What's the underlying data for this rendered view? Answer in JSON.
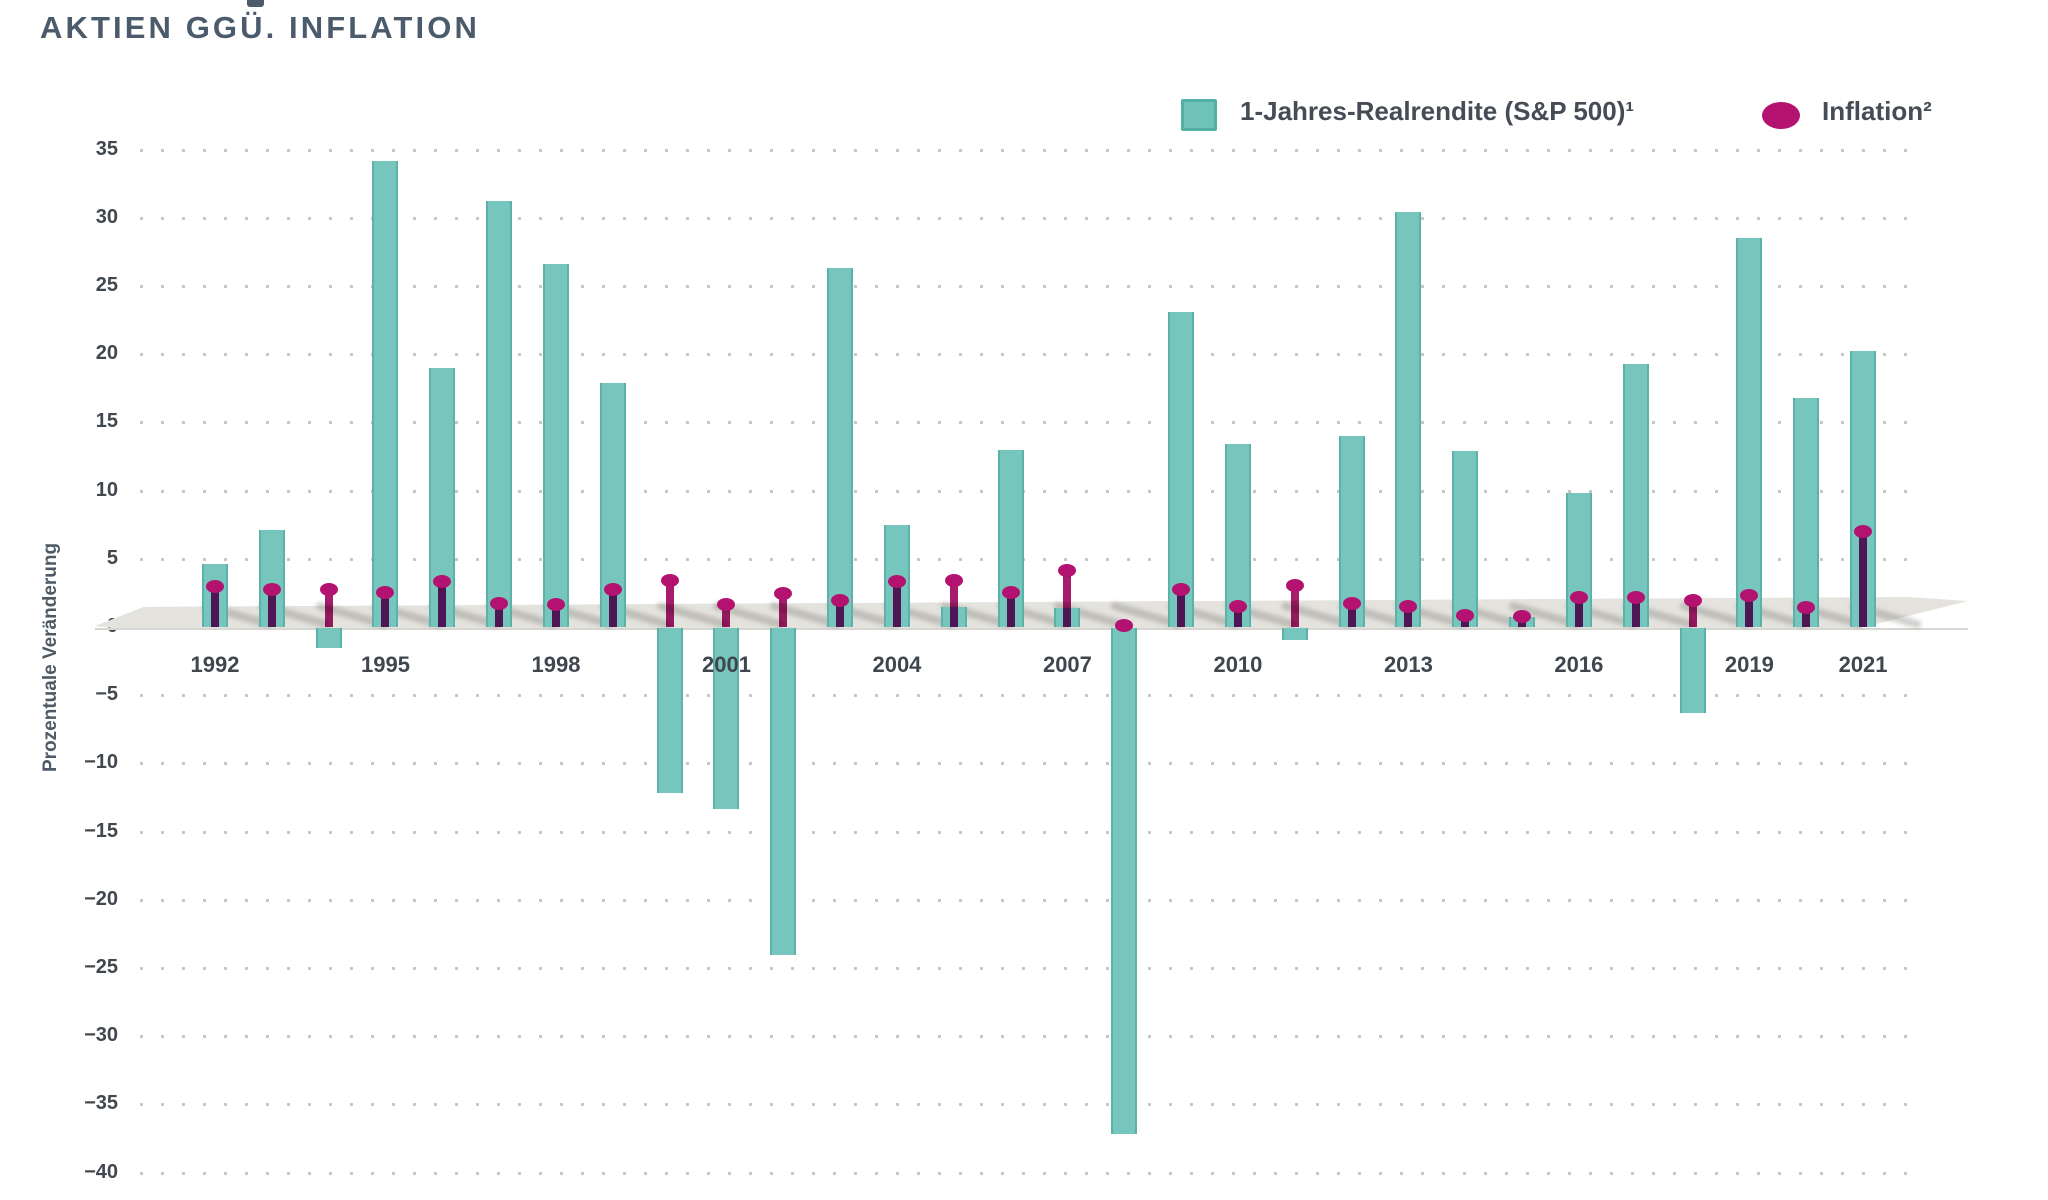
{
  "header": {
    "title": "AKTIEN GGÜ. INFLATION"
  },
  "colors": {
    "title_text": "#4b5b6b",
    "bar_teal": "#76c6bd",
    "bar_teal_edge": "#5cb2a8",
    "inflation_magenta": "#b31270",
    "inflation_stem": "#a81c6e",
    "grid_dot": "#c7c7c7",
    "floor_gray": "#e5e3de",
    "tick_text": "#41474e"
  },
  "legend": {
    "items": [
      {
        "shape": "square",
        "color": "#6ec2b8",
        "label": "1-Jahres-Realrendite (S&P 500)¹"
      },
      {
        "shape": "ellipse",
        "color": "#b31270",
        "label": "Inflation²"
      }
    ]
  },
  "chart_data": {
    "type": "bar",
    "title": "AKTIEN GGÜ. INFLATION",
    "xlabel": "",
    "ylabel": "Prozentuale Veränderung",
    "ylim": [
      -40,
      35
    ],
    "ytick_step": 5,
    "grid": "dotted-horizontal",
    "legend_position": "top-right",
    "categories": [
      "1992",
      "1993",
      "1994",
      "1995",
      "1996",
      "1997",
      "1998",
      "1999",
      "2000",
      "2001",
      "2002",
      "2003",
      "2004",
      "2005",
      "2006",
      "2007",
      "2008",
      "2009",
      "2010",
      "2011",
      "2012",
      "2013",
      "2014",
      "2015",
      "2016",
      "2017",
      "2018",
      "2019",
      "2020",
      "2021"
    ],
    "xticks_shown": [
      "1992",
      "1995",
      "1998",
      "2001",
      "2004",
      "2007",
      "2010",
      "2013",
      "2016",
      "2019",
      "2021"
    ],
    "series": [
      {
        "name": "1-Jahres-Realrendite (S&P 500)¹",
        "style": "bar",
        "color": "#76c6bd",
        "values": [
          4.6,
          7.1,
          -1.5,
          34.2,
          19.0,
          31.2,
          26.6,
          17.9,
          -12.1,
          -13.3,
          -24.0,
          26.3,
          7.5,
          1.5,
          13.0,
          1.4,
          -37.1,
          23.1,
          13.4,
          -0.9,
          14.0,
          30.4,
          12.9,
          0.7,
          9.8,
          19.3,
          -6.2,
          28.5,
          16.8,
          20.2
        ]
      },
      {
        "name": "Inflation²",
        "style": "lollipop",
        "color": "#b31270",
        "values": [
          2.9,
          2.7,
          2.7,
          2.5,
          3.3,
          1.7,
          1.6,
          2.7,
          3.4,
          1.6,
          2.4,
          1.9,
          3.3,
          3.4,
          2.5,
          4.1,
          0.1,
          2.7,
          1.5,
          3.0,
          1.7,
          1.5,
          0.8,
          0.7,
          2.1,
          2.1,
          1.9,
          2.3,
          1.4,
          7.0
        ]
      }
    ]
  }
}
